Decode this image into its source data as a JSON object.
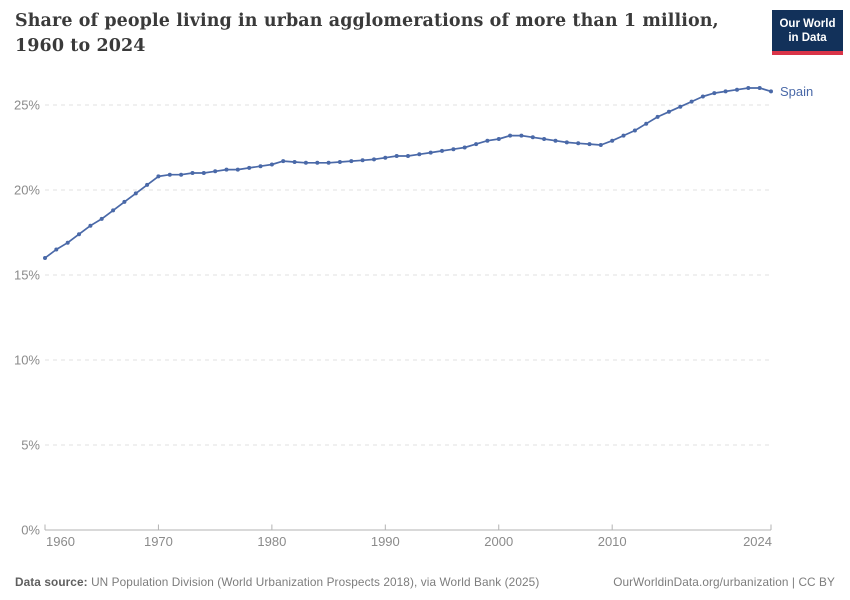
{
  "header": {
    "title_line1": "Share of people living in urban agglomerations of more than 1 million,",
    "title_line2": "1960 to 2024",
    "logo_line1": "Our World",
    "logo_line2": "in Data",
    "logo_bg_color": "#12315a",
    "logo_accent_color": "#d93448"
  },
  "footer": {
    "source_label": "Data source:",
    "source_text": "UN Population Division (World Urbanization Prospects 2018), via World Bank (2025)",
    "attribution": "OurWorldinData.org/urbanization | CC BY"
  },
  "chart_data": {
    "type": "line",
    "title": "Share of people living in urban agglomerations of more than 1 million, 1960 to 2024",
    "xlabel": "",
    "ylabel": "",
    "xlim": [
      1960,
      2024
    ],
    "ylim": [
      0,
      26.2
    ],
    "grid": "dashed-horizontal",
    "legend_position": "end-of-line-label",
    "x_ticks": [
      "1960",
      "1970",
      "1980",
      "1990",
      "2000",
      "2010",
      "2024"
    ],
    "y_ticks": [
      {
        "value": 0,
        "label": "0%"
      },
      {
        "value": 5,
        "label": "5%"
      },
      {
        "value": 10,
        "label": "10%"
      },
      {
        "value": 15,
        "label": "15%"
      },
      {
        "value": 20,
        "label": "20%"
      },
      {
        "value": 25,
        "label": "25%"
      }
    ],
    "series": [
      {
        "name": "Spain",
        "color": "#4a69a8",
        "marker": "circle",
        "years": [
          1960,
          1961,
          1962,
          1963,
          1964,
          1965,
          1966,
          1967,
          1968,
          1969,
          1970,
          1971,
          1972,
          1973,
          1974,
          1975,
          1976,
          1977,
          1978,
          1979,
          1980,
          1981,
          1982,
          1983,
          1984,
          1985,
          1986,
          1987,
          1988,
          1989,
          1990,
          1991,
          1992,
          1993,
          1994,
          1995,
          1996,
          1997,
          1998,
          1999,
          2000,
          2001,
          2002,
          2003,
          2004,
          2005,
          2006,
          2007,
          2008,
          2009,
          2010,
          2011,
          2012,
          2013,
          2014,
          2015,
          2016,
          2017,
          2018,
          2019,
          2020,
          2021,
          2022,
          2023,
          2024
        ],
        "values": [
          16.0,
          16.5,
          16.9,
          17.4,
          17.9,
          18.3,
          18.8,
          19.3,
          19.8,
          20.3,
          20.8,
          20.9,
          20.9,
          21.0,
          21.0,
          21.1,
          21.2,
          21.2,
          21.3,
          21.4,
          21.5,
          21.7,
          21.65,
          21.6,
          21.6,
          21.6,
          21.65,
          21.7,
          21.75,
          21.8,
          21.9,
          22.0,
          22.0,
          22.1,
          22.2,
          22.3,
          22.4,
          22.5,
          22.7,
          22.9,
          23.0,
          23.2,
          23.2,
          23.1,
          23.0,
          22.9,
          22.8,
          22.75,
          22.7,
          22.65,
          22.9,
          23.2,
          23.5,
          23.9,
          24.3,
          24.6,
          24.9,
          25.2,
          25.5,
          25.7,
          25.8,
          25.9,
          26.0,
          26.0,
          25.8
        ]
      }
    ]
  }
}
